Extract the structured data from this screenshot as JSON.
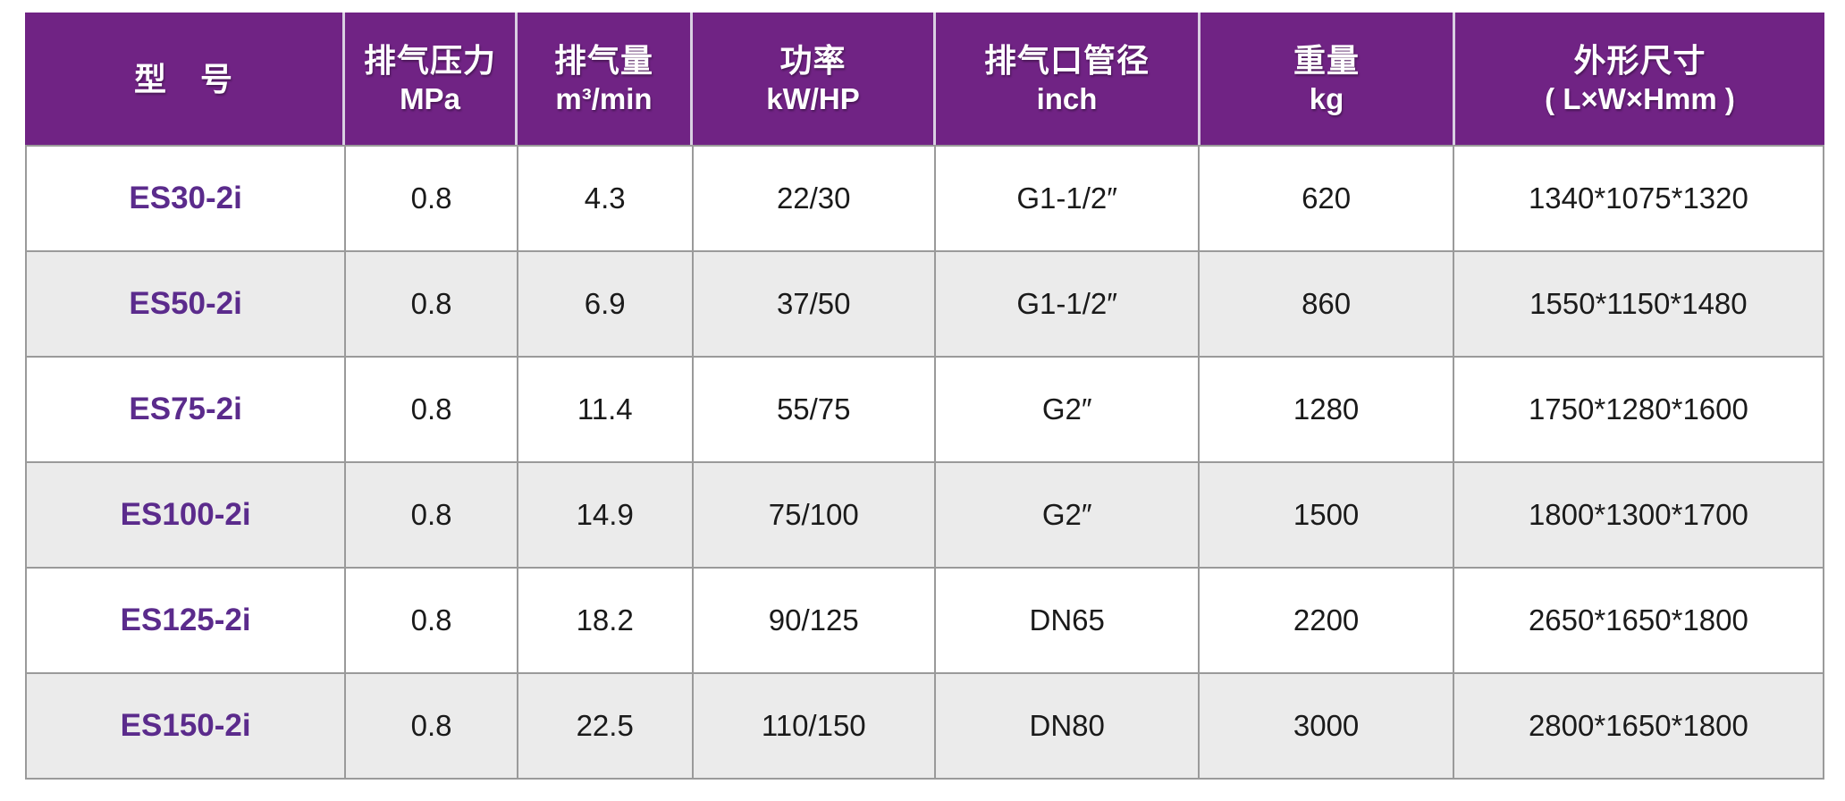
{
  "table": {
    "title_semantic": "compressor-spec-table",
    "columns": [
      {
        "line1": "型　号",
        "line2": ""
      },
      {
        "line1": "排气压力",
        "line2": "MPa"
      },
      {
        "line1": "排气量",
        "line2": "m³/min"
      },
      {
        "line1": "功率",
        "line2": "kW/HP"
      },
      {
        "line1": "排气口管径",
        "line2": "inch"
      },
      {
        "line1": "重量",
        "line2": "kg"
      },
      {
        "line1": "外形尺寸",
        "line2": "( L×W×Hmm )"
      }
    ],
    "rows": [
      {
        "model": "ES30-2i",
        "pressure_mpa": "0.8",
        "flow_m3min": "4.3",
        "power_kw_hp": "22/30",
        "outlet": "G1-1/2″",
        "weight_kg": "620",
        "dimensions": "1340*1075*1320"
      },
      {
        "model": "ES50-2i",
        "pressure_mpa": "0.8",
        "flow_m3min": "6.9",
        "power_kw_hp": "37/50",
        "outlet": "G1-1/2″",
        "weight_kg": "860",
        "dimensions": "1550*1150*1480"
      },
      {
        "model": "ES75-2i",
        "pressure_mpa": "0.8",
        "flow_m3min": "11.4",
        "power_kw_hp": "55/75",
        "outlet": "G2″",
        "weight_kg": "1280",
        "dimensions": "1750*1280*1600"
      },
      {
        "model": "ES100-2i",
        "pressure_mpa": "0.8",
        "flow_m3min": "14.9",
        "power_kw_hp": "75/100",
        "outlet": "G2″",
        "weight_kg": "1500",
        "dimensions": "1800*1300*1700"
      },
      {
        "model": "ES125-2i",
        "pressure_mpa": "0.8",
        "flow_m3min": "18.2",
        "power_kw_hp": "90/125",
        "outlet": "DN65",
        "weight_kg": "2200",
        "dimensions": "2650*1650*1800"
      },
      {
        "model": "ES150-2i",
        "pressure_mpa": "0.8",
        "flow_m3min": "22.5",
        "power_kw_hp": "110/150",
        "outlet": "DN80",
        "weight_kg": "3000",
        "dimensions": "2800*1650*1800"
      }
    ]
  },
  "colors": {
    "header_bg": "#702384",
    "header_text": "#ffffff",
    "header_divider": "#d9cfe2",
    "model_color": "#5b2b8c",
    "row_bg": "#ffffff",
    "row_alt_bg": "#ebebeb",
    "border_color": "#9a9a9a",
    "body_text": "#1a1a1a"
  }
}
